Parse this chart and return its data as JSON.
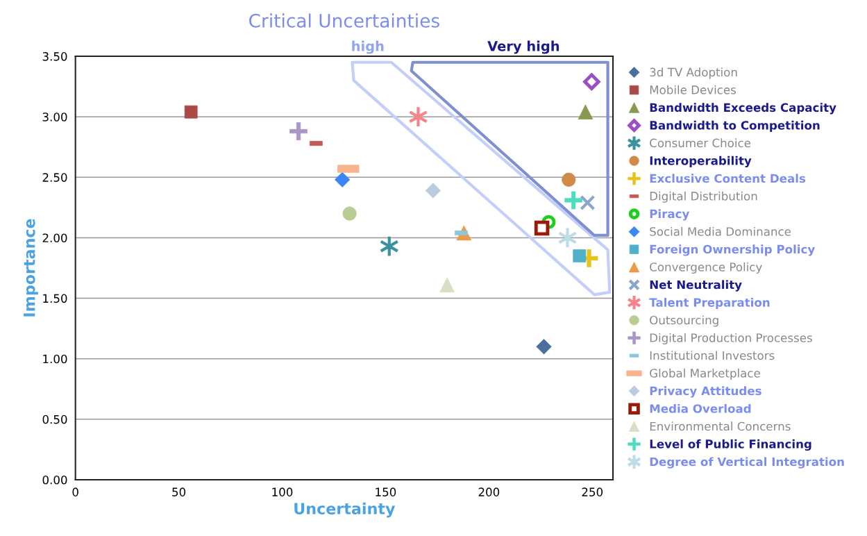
{
  "chart_data": {
    "type": "scatter",
    "title": "Critical Uncertainties",
    "xlabel": "Uncertainty",
    "ylabel": "Importance",
    "xlim": [
      0,
      260
    ],
    "xticks": [
      0,
      50,
      100,
      150,
      200,
      250
    ],
    "ylim": [
      0,
      3.5
    ],
    "yticks": [
      {
        "value": 0,
        "label": "0.00"
      },
      {
        "value": 0.5,
        "label": "0.50"
      },
      {
        "value": 1,
        "label": "1.00"
      },
      {
        "value": 1.5,
        "label": "1.50"
      },
      {
        "value": 2,
        "label": "2.00"
      },
      {
        "value": 2.5,
        "label": "2.50"
      },
      {
        "value": 3,
        "label": "3.00"
      },
      {
        "value": 3.5,
        "label": "3.50"
      }
    ],
    "grid": "y",
    "legend": "right",
    "annotations": [
      "high",
      "Very high"
    ],
    "series": [
      {
        "name": "3d TV Adoption",
        "color": "#4a6f9f",
        "marker": "diamond",
        "x": [
          226.6
        ],
        "values": [
          1.1
        ]
      },
      {
        "name": "Mobile Devices",
        "color": "#a94a47",
        "marker": "square",
        "x": [
          55.9
        ],
        "values": [
          3.04
        ]
      },
      {
        "name": "Bandwidth Exceeds Capacity",
        "color": "#879a52",
        "marker": "triangle",
        "x": [
          246.7
        ],
        "values": [
          3.04
        ]
      },
      {
        "name": "Bandwidth to Competition",
        "color": "#9b4fc4",
        "marker": "diamond_open",
        "x": [
          249.7
        ],
        "values": [
          3.29
        ]
      },
      {
        "name": "Consumer Choice",
        "color": "#3a92a0",
        "marker": "cross_asterisk",
        "x": [
          151.8
        ],
        "values": [
          1.93
        ]
      },
      {
        "name": "Interoperability",
        "color": "#d08a4a",
        "marker": "circle",
        "x": [
          238.6
        ],
        "values": [
          2.48
        ]
      },
      {
        "name": "Exclusive Content Deals",
        "color": "#e8c31a",
        "marker": "cross_plus",
        "x": [
          248.4
        ],
        "values": [
          1.83
        ]
      },
      {
        "name": "Digital Distribution",
        "color": "#c45a55",
        "marker": "square_dash",
        "x": [
          116.4
        ],
        "values": [
          2.78
        ]
      },
      {
        "name": "Piracy",
        "color": "#1ccf1c",
        "marker": "circle_open",
        "x": [
          228.9
        ],
        "values": [
          2.13
        ]
      },
      {
        "name": "Social Media Dominance",
        "color": "#3a86f5",
        "marker": "diamond",
        "x": [
          129.1
        ],
        "values": [
          2.48
        ]
      },
      {
        "name": "Foreign Ownership Policy",
        "color": "#4fb0c8",
        "marker": "square",
        "x": [
          243.8
        ],
        "values": [
          1.85
        ]
      },
      {
        "name": "Convergence Policy",
        "color": "#ee9a4a",
        "marker": "triangle",
        "x": [
          187.9
        ],
        "values": [
          2.04
        ]
      },
      {
        "name": "Net Neutrality",
        "color": "#8aa6cc",
        "marker": "cross",
        "x": [
          247.7
        ],
        "values": [
          2.29
        ]
      },
      {
        "name": "Talent Preparation",
        "color": "#f5858a",
        "marker": "cross_asterisk",
        "x": [
          165.8
        ],
        "values": [
          3.0
        ]
      },
      {
        "name": "Outsourcing",
        "color": "#b8cc93",
        "marker": "circle",
        "x": [
          132.6
        ],
        "values": [
          2.2
        ]
      },
      {
        "name": "Digital Production Processes",
        "color": "#a897c4",
        "marker": "cross_plus",
        "x": [
          107.9
        ],
        "values": [
          2.88
        ]
      },
      {
        "name": "Institutional Investors",
        "color": "#8ac8d8",
        "marker": "square_dash",
        "x": [
          186.6
        ],
        "values": [
          2.04
        ]
      },
      {
        "name": "Global Marketplace",
        "color": "#f8b48a",
        "marker": "square_dash_wide",
        "x": [
          132.0
        ],
        "values": [
          2.57
        ]
      },
      {
        "name": "Privacy Attitudes",
        "color": "#bccbe0",
        "marker": "diamond",
        "x": [
          173.0
        ],
        "values": [
          2.39
        ]
      },
      {
        "name": "Media Overload",
        "color": "#9a1a0a",
        "marker": "square_open",
        "x": [
          225.6
        ],
        "values": [
          2.08
        ]
      },
      {
        "name": "Environmental Concerns",
        "color": "#d5e0c5",
        "marker": "triangle",
        "x": [
          179.8
        ],
        "values": [
          1.61
        ]
      },
      {
        "name": "Level of Public Financing",
        "color": "#4ddcc0",
        "marker": "cross_plus",
        "x": [
          240.9
        ],
        "values": [
          2.31
        ]
      },
      {
        "name": "Degree of Vertical Integration",
        "color": "#bcdce8",
        "marker": "cross_asterisk",
        "x": [
          238.0
        ],
        "values": [
          2.0
        ]
      }
    ]
  }
}
